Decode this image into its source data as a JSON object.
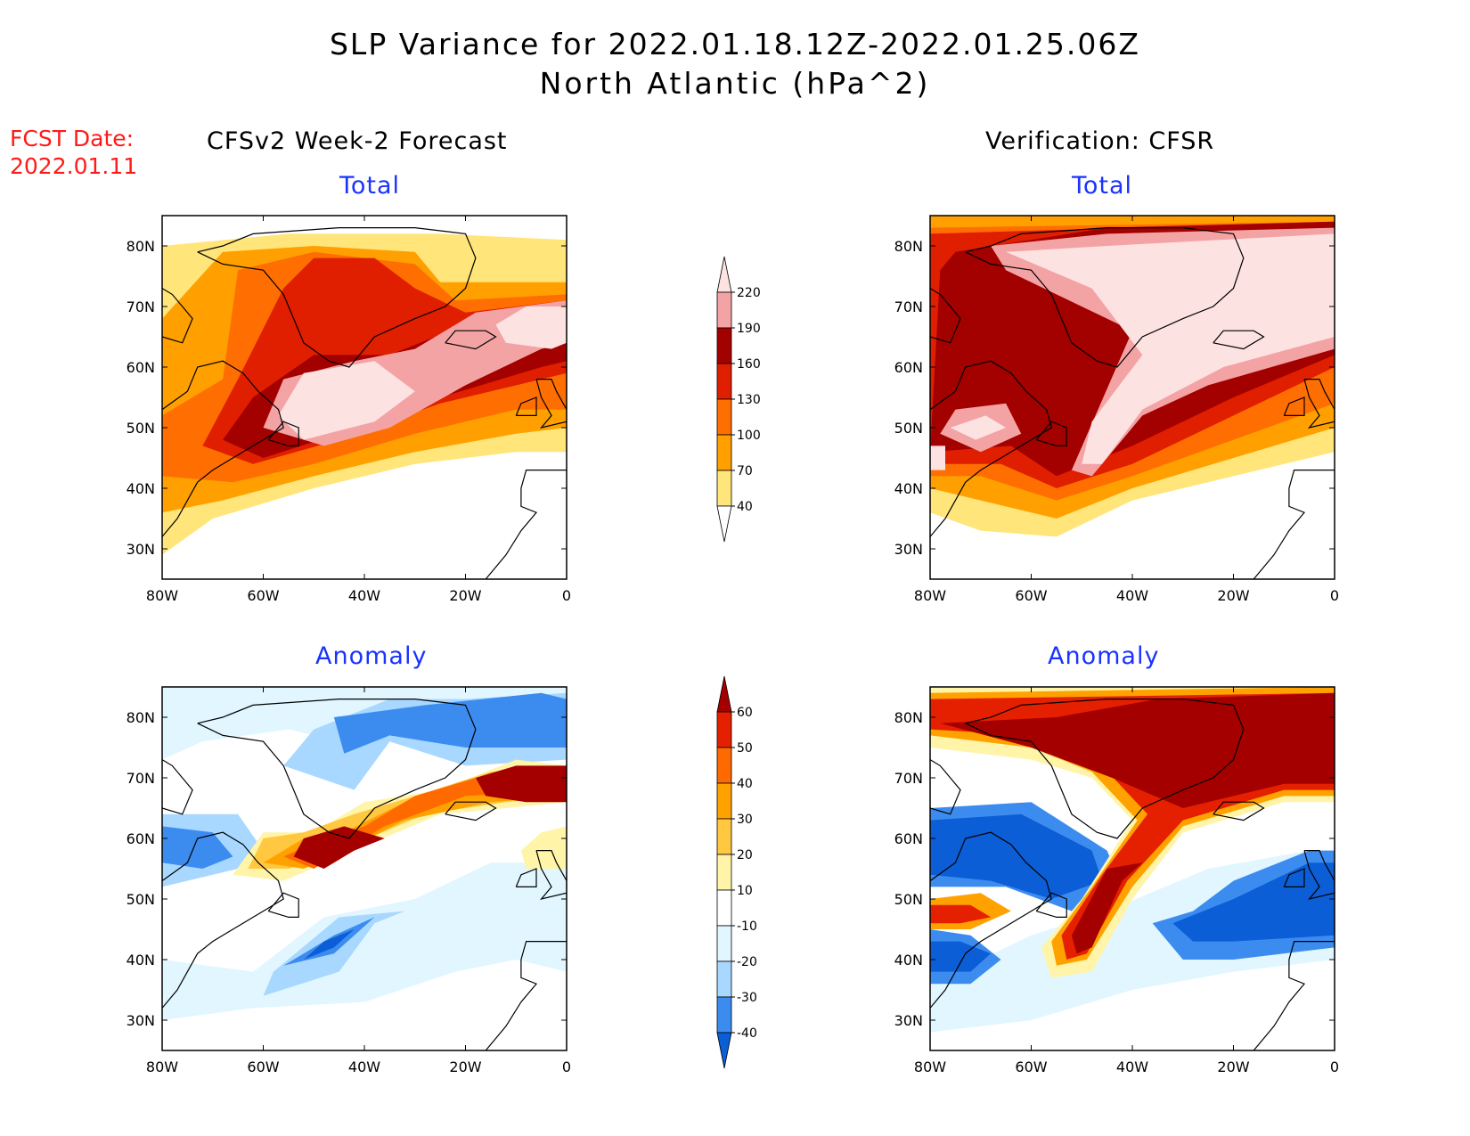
{
  "header": {
    "title_line1": "SLP Variance for 2022.01.18.12Z-2022.01.25.06Z",
    "title_line2": "North Atlantic (hPa^2)",
    "fcst_label": "FCST Date:",
    "fcst_date": "2022.01.11"
  },
  "columns": {
    "left": "CFSv2 Week-2 Forecast",
    "right": "Verification: CFSR"
  },
  "panels": {
    "total_label": "Total",
    "anomaly_label": "Anomaly"
  },
  "axes": {
    "lat_ticks": [
      "80N",
      "70N",
      "60N",
      "50N",
      "40N",
      "30N"
    ],
    "lon_ticks": [
      "80W",
      "60W",
      "40W",
      "20W",
      "0"
    ]
  },
  "colorbars": {
    "total": {
      "labels": [
        "220",
        "190",
        "160",
        "130",
        "100",
        "70",
        "40"
      ],
      "colors": [
        "#fde2e2",
        "#f4a3a5",
        "#a30000",
        "#e01e00",
        "#ff6e00",
        "#ffa000",
        "#ffe57a",
        "#ffffff"
      ]
    },
    "anomaly": {
      "labels": [
        "60",
        "50",
        "40",
        "30",
        "20",
        "10",
        "-10",
        "-20",
        "-30",
        "-40"
      ],
      "colors": [
        "#a50000",
        "#e52000",
        "#ff6a00",
        "#ffa200",
        "#ffc840",
        "#fff4a8",
        "#ffffff",
        "#e1f6ff",
        "#a8d8ff",
        "#3c8cf0",
        "#0c5ed6"
      ]
    }
  },
  "chart_data": [
    {
      "type": "heatmap",
      "title": "Total",
      "subtitle": "CFSv2 Week-2 Forecast",
      "xlim": [
        -80,
        0
      ],
      "ylim": [
        25,
        85
      ],
      "features": [
        {
          "desc": "high variance maximum",
          "lon": -42,
          "lat": 53,
          "value": 220
        },
        {
          "desc": "variance maximum",
          "lon": -8,
          "lat": 66,
          "value": 220
        },
        {
          "desc": "variance maximum",
          "lon": -47,
          "lat": 75,
          "value": 160
        }
      ]
    },
    {
      "type": "heatmap",
      "title": "Total",
      "subtitle": "Verification: CFSR",
      "xlim": [
        -80,
        0
      ],
      "ylim": [
        25,
        85
      ],
      "features": [
        {
          "desc": "variance maximum",
          "lon": -25,
          "lat": 72,
          "value": 220
        },
        {
          "desc": "variance maximum",
          "lon": -47,
          "lat": 50,
          "value": 220
        },
        {
          "desc": "variance maximum",
          "lon": -68,
          "lat": 50,
          "value": 190
        }
      ]
    },
    {
      "type": "heatmap",
      "title": "Anomaly",
      "subtitle": "CFSv2 Week-2 Forecast",
      "xlim": [
        -80,
        0
      ],
      "ylim": [
        25,
        85
      ],
      "features": [
        {
          "desc": "positive anomaly",
          "lon": -8,
          "lat": 65,
          "value": 60
        },
        {
          "desc": "positive anomaly",
          "lon": -47,
          "lat": 55,
          "value": 60
        },
        {
          "desc": "negative anomaly",
          "lon": -48,
          "lat": 43,
          "value": -40
        },
        {
          "desc": "negative anomaly",
          "lon": -40,
          "lat": 80,
          "value": -30
        }
      ]
    },
    {
      "type": "heatmap",
      "title": "Anomaly",
      "subtitle": "Verification: CFSR",
      "xlim": [
        -80,
        0
      ],
      "ylim": [
        25,
        85
      ],
      "features": [
        {
          "desc": "positive anomaly",
          "lon": -30,
          "lat": 76,
          "value": 60
        },
        {
          "desc": "positive anomaly",
          "lon": -46,
          "lat": 47,
          "value": 60
        },
        {
          "desc": "negative anomaly",
          "lon": -65,
          "lat": 58,
          "value": -40
        },
        {
          "desc": "negative anomaly",
          "lon": -22,
          "lat": 47,
          "value": -40
        }
      ]
    }
  ]
}
